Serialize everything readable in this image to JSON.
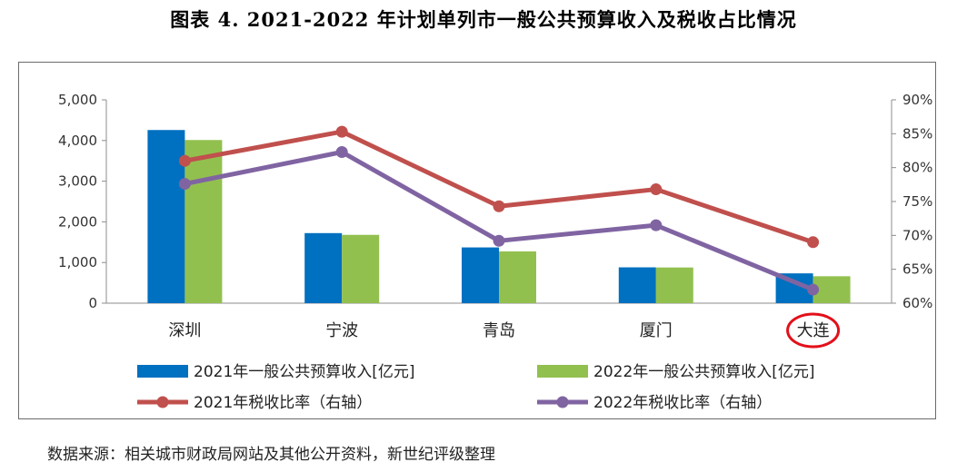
{
  "figure_title": "图表 4.   2021-2022 年计划单列市一般公共预算收入及税收占比情况",
  "source_note": "数据来源：相关城市财政局网站及其他公开资料，新世纪评级整理",
  "chart_data": {
    "type": "bar+line",
    "categories": [
      "深圳",
      "宁波",
      "青岛",
      "厦门",
      "大连"
    ],
    "highlighted_category": "大连",
    "highlight_color": "#e3101a",
    "y_left": {
      "min": 0,
      "max": 5000,
      "step": 1000,
      "tick_labels": [
        "0",
        "1,000",
        "2,000",
        "3,000",
        "4,000",
        "5,000"
      ]
    },
    "y_right": {
      "min": 60,
      "max": 90,
      "step": 5,
      "tick_labels": [
        "60%",
        "65%",
        "70%",
        "75%",
        "80%",
        "85%",
        "90%"
      ]
    },
    "bar_series": [
      {
        "name": "2021年一般公共预算收入[亿元]",
        "color": "#0070c0",
        "values": [
          4258,
          1723,
          1371,
          881,
          733
        ]
      },
      {
        "name": "2022年一般公共预算收入[亿元]",
        "color": "#92c04f",
        "values": [
          4012,
          1680,
          1273,
          878,
          662
        ]
      }
    ],
    "line_series": [
      {
        "name": "2021年税收比率（右轴）",
        "color": "#c0504d",
        "values": [
          81.0,
          85.3,
          74.3,
          76.8,
          69.0
        ]
      },
      {
        "name": "2022年税收比率（右轴）",
        "color": "#8064a2",
        "values": [
          77.6,
          82.3,
          69.2,
          71.5,
          62.0
        ]
      }
    ],
    "legend_position": "bottom"
  }
}
